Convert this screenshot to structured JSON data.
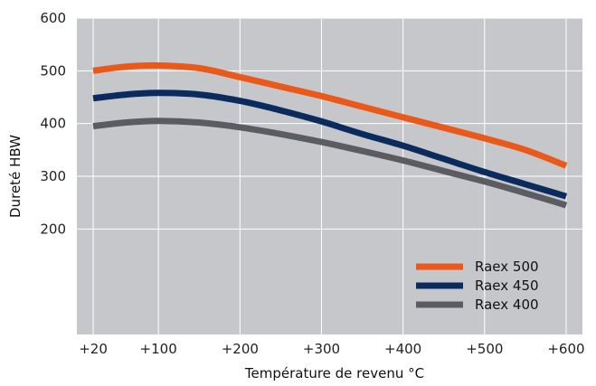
{
  "chart_data": {
    "type": "line",
    "title": "",
    "xlabel": "Température de revenu °C",
    "ylabel": "Dureté HBW",
    "x_tick_labels": [
      "+20",
      "+100",
      "+200",
      "+300",
      "+400",
      "+500",
      "+600"
    ],
    "x_tick_values": [
      20,
      100,
      200,
      300,
      400,
      500,
      600
    ],
    "y_tick_labels": [
      "200",
      "300",
      "400",
      "500",
      "600"
    ],
    "y_tick_values": [
      200,
      300,
      400,
      500,
      600
    ],
    "xlim": [
      0,
      620
    ],
    "ylim": [
      0,
      600
    ],
    "grid": true,
    "legend_position": "bottom-right",
    "plot_background": "#c6c7ca",
    "series": [
      {
        "name": "Raex 500",
        "color": "#e8591a",
        "x": [
          20,
          60,
          100,
          150,
          200,
          250,
          300,
          350,
          400,
          450,
          500,
          550,
          600
        ],
        "y": [
          500,
          508,
          510,
          505,
          488,
          470,
          452,
          432,
          412,
          392,
          372,
          350,
          320
        ]
      },
      {
        "name": "Raex 450",
        "color": "#0b2b5e",
        "x": [
          20,
          60,
          100,
          150,
          200,
          250,
          300,
          350,
          400,
          450,
          500,
          550,
          600
        ],
        "y": [
          448,
          455,
          458,
          455,
          443,
          425,
          404,
          380,
          358,
          333,
          308,
          285,
          262
        ]
      },
      {
        "name": "Raex 400",
        "color": "#5a5c61",
        "x": [
          20,
          60,
          100,
          150,
          200,
          250,
          300,
          350,
          400,
          450,
          500,
          550,
          600
        ],
        "y": [
          395,
          402,
          405,
          402,
          393,
          380,
          365,
          348,
          330,
          310,
          290,
          268,
          245
        ]
      }
    ]
  }
}
